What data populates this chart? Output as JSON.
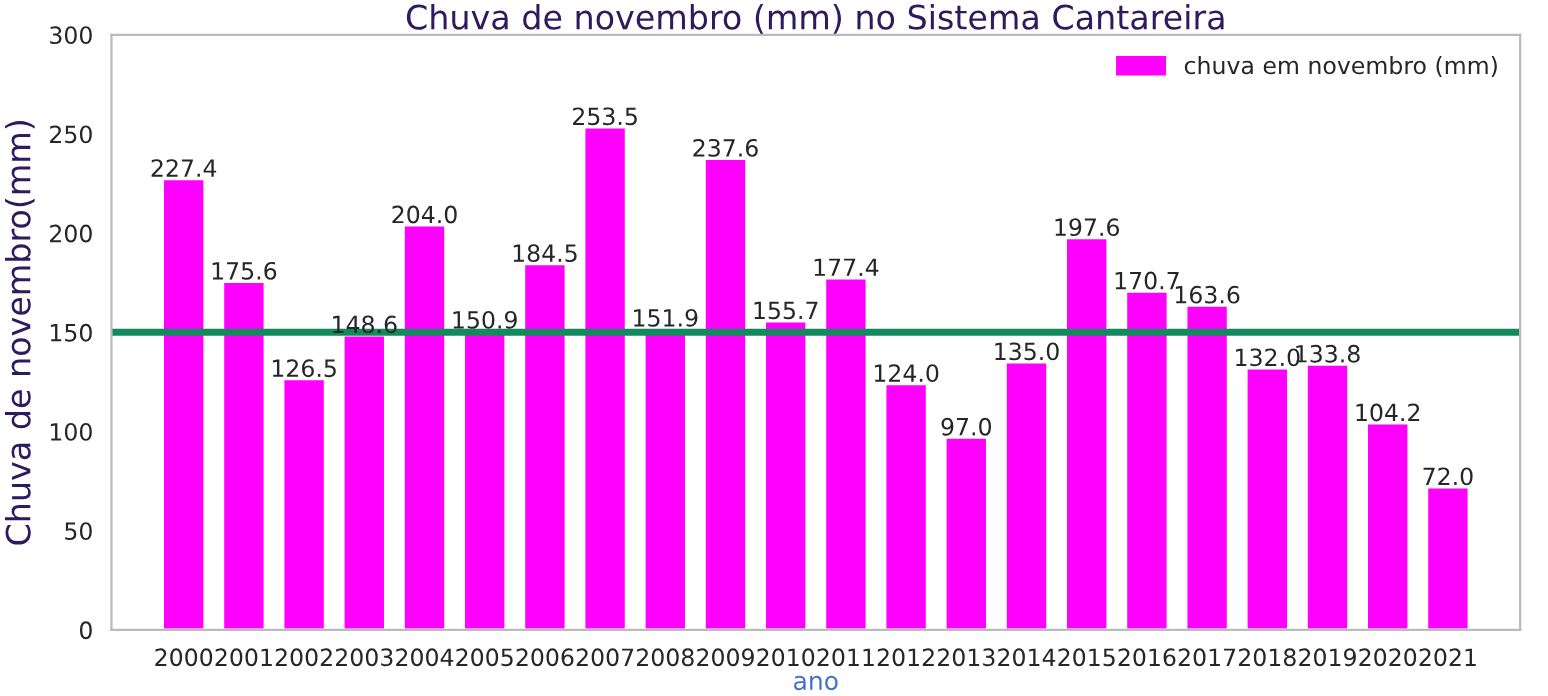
{
  "chart_data": {
    "type": "bar",
    "title": "Chuva de novembro (mm) no Sistema Cantareira",
    "xlabel": "ano",
    "ylabel": "Chuva de novembro(mm)",
    "categories": [
      "2000",
      "2001",
      "2002",
      "2003",
      "2004",
      "2005",
      "2006",
      "2007",
      "2008",
      "2009",
      "2010",
      "2011",
      "2012",
      "2013",
      "2014",
      "2015",
      "2016",
      "2017",
      "2018",
      "2019",
      "2020",
      "2021"
    ],
    "series": [
      {
        "name": "chuva em novembro (mm)",
        "color": "#ff00ff",
        "values": [
          227.4,
          175.6,
          126.5,
          148.6,
          204.0,
          150.9,
          184.5,
          253.5,
          151.9,
          237.6,
          155.7,
          177.4,
          124.0,
          97.0,
          135.0,
          197.6,
          170.7,
          163.6,
          132.0,
          133.8,
          104.2,
          72.0
        ],
        "value_labels": [
          "227.4",
          "175.6",
          "126.5",
          "148.6",
          "204.0",
          "150.9",
          "184.5",
          "253.5",
          "151.9",
          "237.6",
          "155.7",
          "177.4",
          "124.0",
          "97.0",
          "135.0",
          "197.6",
          "170.7",
          "163.6",
          "132.0",
          "133.8",
          "104.2",
          "72.0"
        ]
      }
    ],
    "ylim": [
      0,
      300
    ],
    "yticks": [
      0,
      50,
      100,
      150,
      200,
      250,
      300
    ],
    "ref_lines": [
      {
        "axis": "y",
        "value": 150,
        "color": "#138a5e"
      }
    ],
    "legend": "top right",
    "grid": false
  }
}
